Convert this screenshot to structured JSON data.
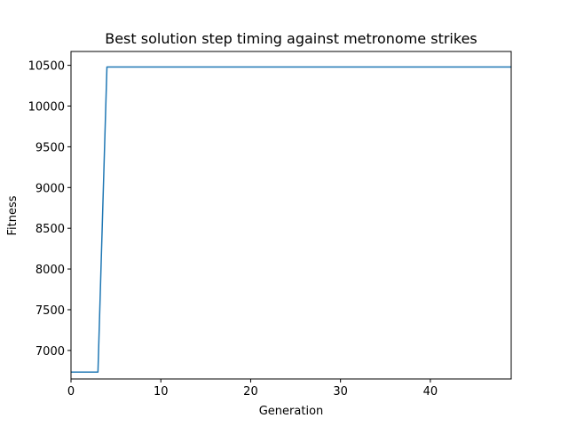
{
  "chart_data": {
    "type": "line",
    "title": "Best solution step timing against metronome strikes",
    "xlabel": "Generation",
    "ylabel": "Fitness",
    "xlim": [
      0,
      49
    ],
    "ylim": [
      6650,
      10670
    ],
    "xticks": [
      0,
      10,
      20,
      30,
      40
    ],
    "yticks": [
      7000,
      7500,
      8000,
      8500,
      9000,
      9500,
      10000,
      10500
    ],
    "grid": false,
    "series": [
      {
        "color": "#1f77b4",
        "x": [
          0,
          1,
          2,
          3,
          4,
          5,
          6,
          7,
          8,
          9,
          10,
          11,
          12,
          13,
          14,
          15,
          16,
          17,
          18,
          19,
          20,
          21,
          22,
          23,
          24,
          25,
          26,
          27,
          28,
          29,
          30,
          31,
          32,
          33,
          34,
          35,
          36,
          37,
          38,
          39,
          40,
          41,
          42,
          43,
          44,
          45,
          46,
          47,
          48,
          49
        ],
        "y": [
          6735,
          6735,
          6735,
          6735,
          10480,
          10480,
          10480,
          10480,
          10480,
          10480,
          10480,
          10480,
          10480,
          10480,
          10480,
          10480,
          10480,
          10480,
          10480,
          10480,
          10480,
          10480,
          10480,
          10480,
          10480,
          10480,
          10480,
          10480,
          10480,
          10480,
          10480,
          10480,
          10480,
          10480,
          10480,
          10480,
          10480,
          10480,
          10480,
          10480,
          10480,
          10480,
          10480,
          10480,
          10480,
          10480,
          10480,
          10480,
          10480,
          10480
        ]
      }
    ]
  }
}
